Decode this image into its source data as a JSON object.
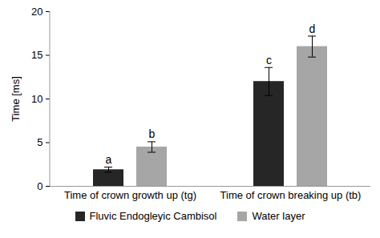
{
  "chart_data": {
    "type": "bar",
    "y_label": "Time [ms]",
    "categories": [
      "Time of crown growth up (tg)",
      "Time of crown breaking up (tb)"
    ],
    "series": [
      {
        "name": "Fluvic Endogleyic Cambisol",
        "color": "#262626",
        "values": [
          1.9,
          12.0
        ],
        "errors": [
          0.3,
          1.6
        ],
        "letters": [
          "a",
          "c"
        ]
      },
      {
        "name": "Water layer",
        "color": "#a6a6a6",
        "values": [
          4.5,
          16.0
        ],
        "errors": [
          0.6,
          1.2
        ],
        "letters": [
          "b",
          "d"
        ]
      }
    ],
    "ylim": [
      0,
      20
    ],
    "yticks": [
      0,
      5,
      10,
      15,
      20
    ],
    "grid": false,
    "legend": "bottom"
  }
}
